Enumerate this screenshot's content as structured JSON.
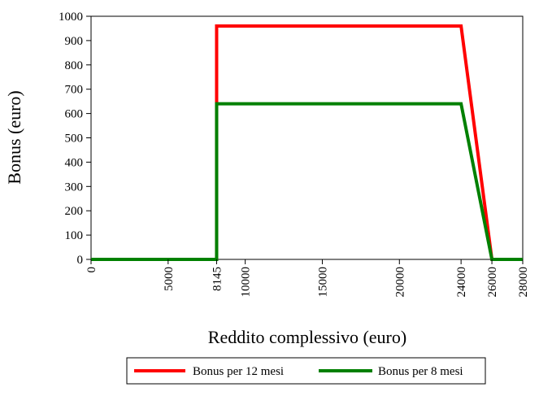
{
  "chart_data": {
    "type": "line",
    "title": "",
    "xlabel": "Reddito complessivo (euro)",
    "ylabel": "Bonus (euro)",
    "xlim": [
      0,
      28000
    ],
    "ylim": [
      0,
      1000
    ],
    "x_ticks": [
      0,
      5000,
      8145,
      10000,
      15000,
      20000,
      24000,
      26000,
      28000
    ],
    "x_tick_labels": [
      "0",
      "5000",
      "8145",
      "10000",
      "15000",
      "20000",
      "24000",
      "26000",
      "28000"
    ],
    "y_ticks": [
      0,
      100,
      200,
      300,
      400,
      500,
      600,
      700,
      800,
      900,
      1000
    ],
    "y_tick_labels": [
      "0",
      "100",
      "200",
      "300",
      "400",
      "500",
      "600",
      "700",
      "800",
      "900",
      "1000"
    ],
    "grid": false,
    "legend_position": "bottom",
    "series": [
      {
        "name": "Bonus per 12 mesi",
        "color": "#ff0000",
        "x": [
          0,
          8145,
          8145,
          24000,
          26000,
          28000
        ],
        "y": [
          0,
          0,
          960,
          960,
          0,
          0
        ]
      },
      {
        "name": "Bonus per 8 mesi",
        "color": "#008000",
        "x": [
          0,
          8145,
          8145,
          24000,
          26000,
          28000
        ],
        "y": [
          0,
          0,
          640,
          640,
          0,
          0
        ]
      }
    ]
  }
}
